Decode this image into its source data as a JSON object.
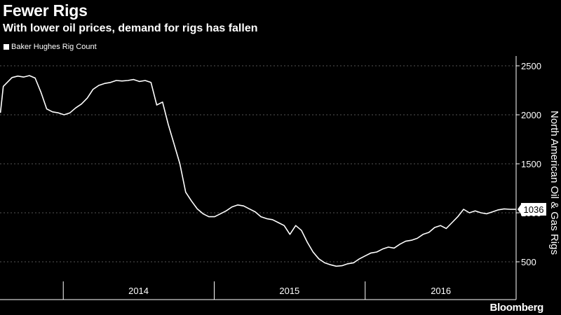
{
  "title": "Fewer Rigs",
  "subtitle": "With lower oil prices, demand for rigs has fallen",
  "branding": "Bloomberg",
  "colors": {
    "background": "#000000",
    "line": "#ffffff",
    "grid": "#555555"
  },
  "chart_data": {
    "type": "line",
    "title": "Fewer Rigs",
    "subtitle": "With lower oil prices, demand for rigs has fallen",
    "ylabel": "North American Oil & Gas Rigs",
    "ylim": [
      300,
      2600
    ],
    "yticks": [
      500,
      1000,
      1500,
      2000,
      2500
    ],
    "xlim": [
      "2013-08-01",
      "2016-12-31"
    ],
    "xtick_labels": [
      "2014",
      "2015",
      "2016"
    ],
    "legend": {
      "entries": [
        "Baker Hughes Rig Count"
      ],
      "placement": "top-left"
    },
    "grid": "horizontal dashed",
    "last_value_label": "1036",
    "series": [
      {
        "name": "Baker Hughes Rig Count",
        "x": [
          "2013-08-02",
          "2013-08-09",
          "2013-08-30",
          "2013-09-13",
          "2013-09-27",
          "2013-10-11",
          "2013-10-25",
          "2013-11-08",
          "2013-11-22",
          "2013-12-06",
          "2013-12-20",
          "2014-01-03",
          "2014-01-17",
          "2014-01-31",
          "2014-02-14",
          "2014-02-28",
          "2014-03-14",
          "2014-03-28",
          "2014-04-11",
          "2014-04-25",
          "2014-05-09",
          "2014-05-23",
          "2014-06-06",
          "2014-06-20",
          "2014-07-04",
          "2014-07-18",
          "2014-08-01",
          "2014-08-15",
          "2014-08-29",
          "2014-09-12",
          "2014-09-26",
          "2014-10-10",
          "2014-10-24",
          "2014-11-07",
          "2014-11-21",
          "2014-12-05",
          "2014-12-19",
          "2015-01-02",
          "2015-01-16",
          "2015-01-30",
          "2015-02-13",
          "2015-02-27",
          "2015-03-13",
          "2015-03-27",
          "2015-04-10",
          "2015-04-24",
          "2015-05-08",
          "2015-05-22",
          "2015-06-05",
          "2015-06-19",
          "2015-07-03",
          "2015-07-17",
          "2015-07-31",
          "2015-08-14",
          "2015-08-28",
          "2015-09-11",
          "2015-09-25",
          "2015-10-09",
          "2015-10-23",
          "2015-11-06",
          "2015-11-20",
          "2015-12-04",
          "2015-12-18",
          "2016-01-01",
          "2016-01-15",
          "2016-01-29",
          "2016-02-12",
          "2016-02-26",
          "2016-03-11",
          "2016-03-25",
          "2016-04-08",
          "2016-04-22",
          "2016-05-06",
          "2016-05-20",
          "2016-06-03",
          "2016-06-17",
          "2016-07-01",
          "2016-07-15",
          "2016-07-29",
          "2016-08-12",
          "2016-08-26",
          "2016-09-09",
          "2016-09-23",
          "2016-10-07",
          "2016-10-21",
          "2016-11-04",
          "2016-11-18",
          "2016-12-02",
          "2016-12-16",
          "2016-12-30"
        ],
        "values": [
          2020,
          2290,
          2380,
          2395,
          2385,
          2400,
          2375,
          2230,
          2060,
          2030,
          2020,
          2000,
          2020,
          2070,
          2110,
          2170,
          2260,
          2300,
          2320,
          2330,
          2350,
          2345,
          2350,
          2360,
          2340,
          2350,
          2330,
          2100,
          2130,
          1900,
          1700,
          1500,
          1210,
          1120,
          1040,
          990,
          960,
          960,
          990,
          1020,
          1060,
          1080,
          1070,
          1040,
          1010,
          960,
          940,
          930,
          900,
          870,
          780,
          870,
          820,
          700,
          600,
          530,
          490,
          470,
          455,
          460,
          480,
          490,
          530,
          560,
          590,
          600,
          630,
          650,
          640,
          680,
          710,
          720,
          740,
          780,
          800,
          850,
          870,
          840,
          900,
          960,
          1036,
          1000,
          1020,
          1000,
          990,
          1010,
          1030,
          1040,
          1036,
          1036
        ],
        "color": "#ffffff"
      }
    ]
  }
}
